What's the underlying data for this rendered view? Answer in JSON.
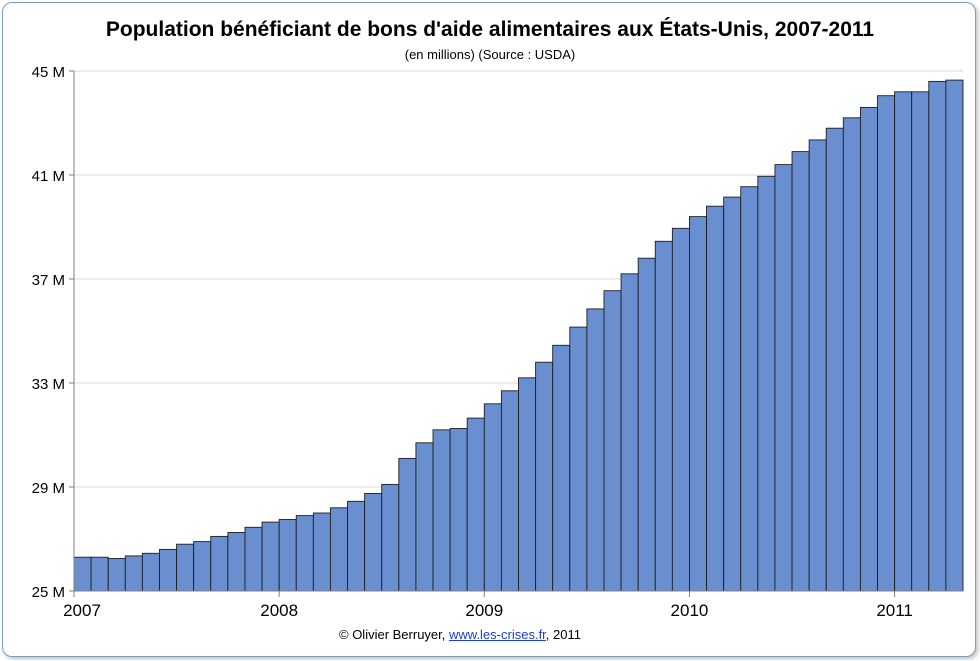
{
  "chart_data": {
    "type": "bar",
    "title": "Population bénéficiant de bons d'aide alimentaires aux États-Unis, 2007-2011",
    "subtitle": "(en millions) (Source : USDA)",
    "ylim": [
      25,
      45
    ],
    "yticks": [
      25,
      29,
      33,
      37,
      41,
      45
    ],
    "ytick_labels": [
      "25 M",
      "29 M",
      "33 M",
      "37 M",
      "41 M",
      "45 M"
    ],
    "xtick_labels": [
      "2007",
      "2008",
      "2009",
      "2010",
      "2011"
    ],
    "months_per_year": 12,
    "grid": true,
    "bar_color": "#6a8fd0",
    "bar_edge_color": "#1f1f1f",
    "values": [
      26.3,
      26.3,
      26.25,
      26.35,
      26.45,
      26.6,
      26.8,
      26.9,
      27.1,
      27.25,
      27.45,
      27.65,
      27.75,
      27.9,
      28.0,
      28.2,
      28.45,
      28.75,
      29.1,
      30.1,
      30.7,
      31.2,
      31.25,
      31.65,
      32.2,
      32.7,
      33.2,
      33.8,
      34.45,
      35.15,
      35.85,
      36.55,
      37.2,
      37.8,
      38.45,
      38.95,
      39.4,
      39.8,
      40.15,
      40.55,
      40.95,
      41.4,
      41.9,
      42.35,
      42.8,
      43.2,
      43.6,
      44.05,
      44.2,
      44.2,
      44.6,
      44.65
    ]
  },
  "credit": {
    "prefix": "© Olivier Berruyer, ",
    "link_text": "www.les-crises.fr",
    "suffix": ",  2011"
  }
}
